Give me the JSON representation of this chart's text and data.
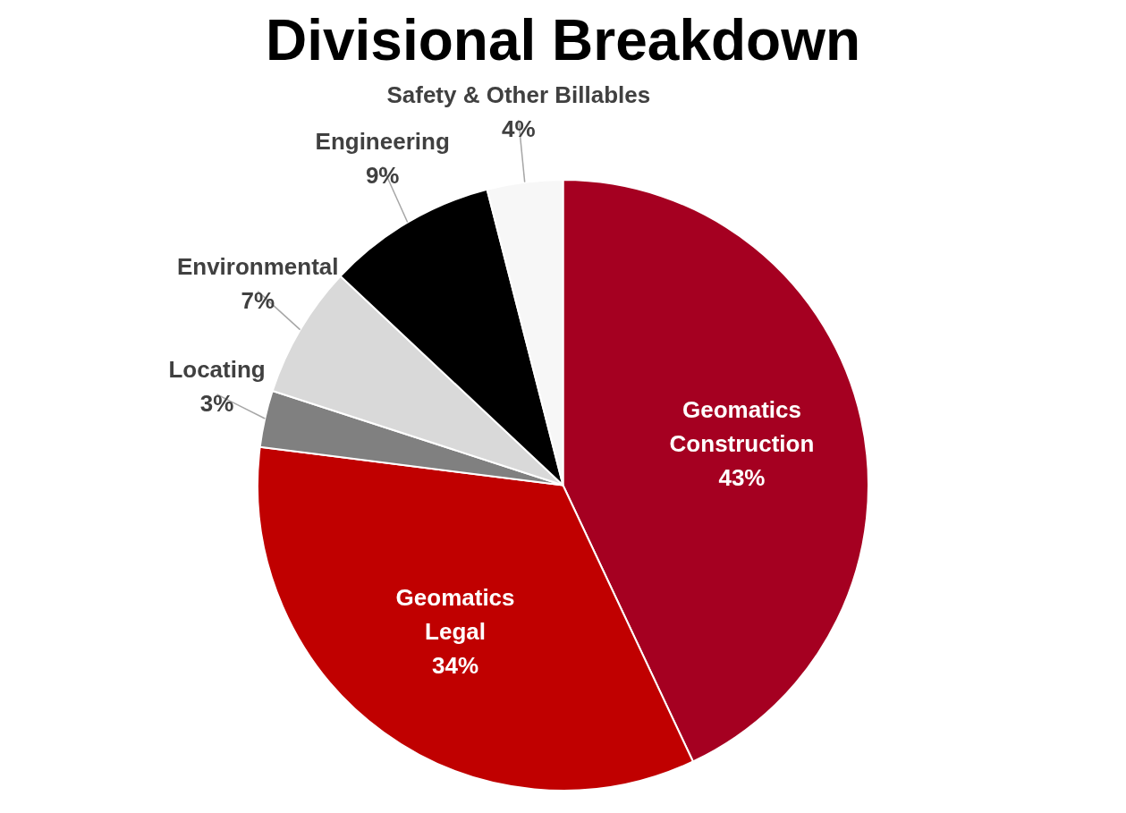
{
  "chart_data": {
    "type": "pie",
    "title": "Divisional Breakdown",
    "categories": [
      "Geomatics Construction",
      "Geomatics Legal",
      "Locating",
      "Environmental",
      "Engineering",
      "Safety & Other Billables"
    ],
    "values": [
      43,
      34,
      3,
      7,
      9,
      4
    ],
    "value_labels": [
      "43%",
      "34%",
      "3%",
      "7%",
      "9%",
      "4%"
    ],
    "colors": [
      "#a50021",
      "#c00000",
      "#808080",
      "#d9d9d9",
      "#000000",
      "#f7f7f7"
    ],
    "legend": false
  }
}
